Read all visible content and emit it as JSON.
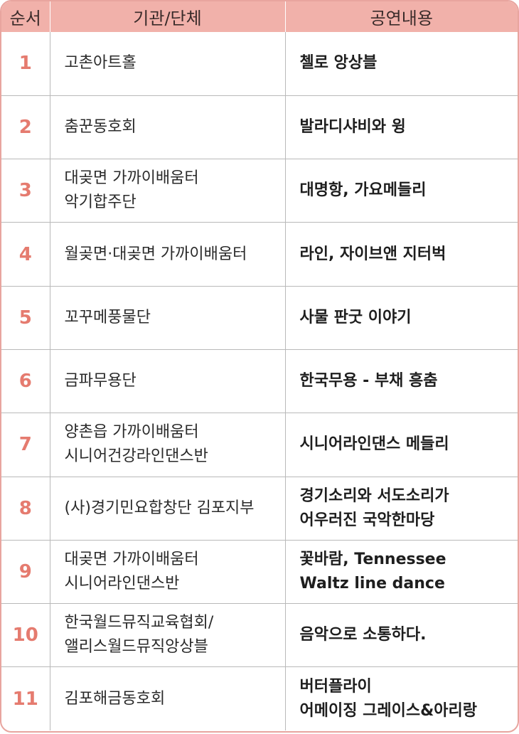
{
  "header": {
    "col_order": "순서",
    "col_org": "기관/단체",
    "col_performance": "공연내용"
  },
  "rows": [
    {
      "num": "1",
      "org": [
        "고촌아트홀"
      ],
      "performance": [
        "첼로 앙상블"
      ]
    },
    {
      "num": "2",
      "org": [
        "춤꾼동호회"
      ],
      "performance": [
        "발라디샤비와 윙"
      ]
    },
    {
      "num": "3",
      "org": [
        "대곶면 가까이배움터",
        "악기합주단"
      ],
      "performance": [
        "대명항, 가요메들리"
      ]
    },
    {
      "num": "4",
      "org": [
        "월곶면·대곶면 가까이배움터"
      ],
      "performance": [
        "라인, 자이브앤 지터벅"
      ]
    },
    {
      "num": "5",
      "org": [
        "꼬꾸메풍물단"
      ],
      "performance": [
        "사물 판굿 이야기"
      ]
    },
    {
      "num": "6",
      "org": [
        "금파무용단"
      ],
      "performance": [
        "한국무용 - 부채 흥춤"
      ]
    },
    {
      "num": "7",
      "org": [
        "양촌읍 가까이배움터",
        "시니어건강라인댄스반"
      ],
      "performance": [
        "시니어라인댄스 메들리"
      ]
    },
    {
      "num": "8",
      "org": [
        "(사)경기민요합창단 김포지부"
      ],
      "performance": [
        "경기소리와 서도소리가",
        "어우러진 국악한마당"
      ]
    },
    {
      "num": "9",
      "org": [
        "대곶면 가까이배움터",
        "시니어라인댄스반"
      ],
      "performance": [
        "꽃바람, Tennessee",
        "Waltz line dance"
      ]
    },
    {
      "num": "10",
      "org": [
        "한국월드뮤직교육협회/",
        "앨리스월드뮤직앙상블"
      ],
      "performance": [
        "음악으로 소통하다."
      ]
    },
    {
      "num": "11",
      "org": [
        "김포해금동호회"
      ],
      "performance": [
        "버터플라이",
        "어메이징 그레이스&아리랑"
      ]
    }
  ]
}
